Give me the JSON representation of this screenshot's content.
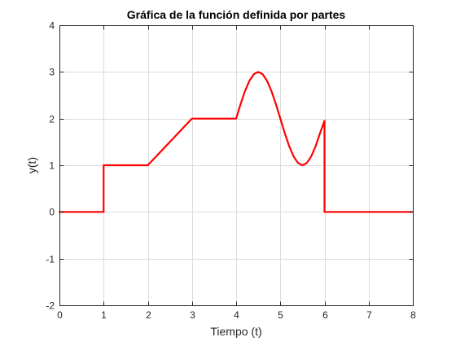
{
  "chart_data": {
    "type": "line",
    "title": "Gráfica de la función definida por partes",
    "xlabel": "Tiempo (t)",
    "ylabel": "y(t)",
    "xlim": [
      0,
      8
    ],
    "ylim": [
      -2,
      4
    ],
    "xticks": [
      0,
      1,
      2,
      3,
      4,
      5,
      6,
      7,
      8
    ],
    "yticks": [
      -2,
      -1,
      0,
      1,
      2,
      3,
      4
    ],
    "xtick_labels": [
      "0",
      "1",
      "2",
      "3",
      "4",
      "5",
      "6",
      "7",
      "8"
    ],
    "ytick_labels": [
      "-2",
      "-1",
      "0",
      "1",
      "2",
      "3",
      "4"
    ],
    "grid": true,
    "colors": {
      "line": "#ff0000",
      "axes": "#262626",
      "grid": "#dcdcdc",
      "background": "#ffffff"
    },
    "series": [
      {
        "x": [
          0,
          1,
          1,
          2,
          3,
          4,
          4.1,
          4.2,
          4.3,
          4.4,
          4.5,
          4.6,
          4.7,
          4.8,
          4.9,
          5.0,
          5.1,
          5.2,
          5.3,
          5.4,
          5.5,
          5.6,
          5.7,
          5.8,
          5.9,
          6.0,
          6.0,
          8
        ],
        "y": [
          0,
          0,
          1,
          1,
          2,
          2,
          2.309,
          2.588,
          2.809,
          2.951,
          3.0,
          2.951,
          2.809,
          2.588,
          2.309,
          2.0,
          1.691,
          1.412,
          1.191,
          1.049,
          1.0,
          1.049,
          1.191,
          1.412,
          1.691,
          1.95,
          0,
          0
        ]
      }
    ]
  }
}
